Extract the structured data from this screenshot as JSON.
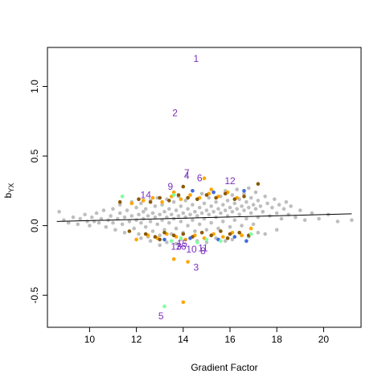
{
  "chart_data": {
    "type": "scatter",
    "title": "",
    "xlabel": "Gradient Factor",
    "ylabel_main": "b",
    "ylabel_sub": "YX",
    "xlim": [
      8.2,
      21.6
    ],
    "ylim": [
      -0.73,
      1.28
    ],
    "xticks": [
      10,
      12,
      14,
      16,
      18,
      20
    ],
    "xtick_labels": [
      "10",
      "12",
      "14",
      "16",
      "18",
      "20"
    ],
    "yticks": [
      -0.5,
      0.0,
      0.5,
      1.0
    ],
    "ytick_labels": [
      "-0.5",
      "0.0",
      "0.5",
      "1.0"
    ],
    "grid": false,
    "legend": "none",
    "colors": {
      "background_points": "#bebebe",
      "orange": "#ffa500",
      "brown": "#8b5a00",
      "blue": "#4169e1",
      "green": "#7fff9f",
      "label": "#7b2fbe",
      "line": "#000000"
    },
    "trend_line": {
      "x": [
        8.6,
        21.2
      ],
      "y": [
        0.03,
        0.085
      ]
    },
    "annotations": [
      {
        "label": "1",
        "x": 14.55,
        "y": 1.2
      },
      {
        "label": "2",
        "x": 13.65,
        "y": 0.81
      },
      {
        "label": "3",
        "x": 14.55,
        "y": -0.3
      },
      {
        "label": "4",
        "x": 14.15,
        "y": 0.36
      },
      {
        "label": "5",
        "x": 13.05,
        "y": -0.65
      },
      {
        "label": "6",
        "x": 14.7,
        "y": 0.34
      },
      {
        "label": "7",
        "x": 14.15,
        "y": 0.38
      },
      {
        "label": "8",
        "x": 14.85,
        "y": -0.18
      },
      {
        "label": "9",
        "x": 13.45,
        "y": 0.28
      },
      {
        "label": "10",
        "x": 14.35,
        "y": -0.17
      },
      {
        "label": "11",
        "x": 14.85,
        "y": -0.16
      },
      {
        "label": "12",
        "x": 16.0,
        "y": 0.32
      },
      {
        "label": "13",
        "x": 13.7,
        "y": -0.15
      },
      {
        "label": "14",
        "x": 12.4,
        "y": 0.22
      },
      {
        "label": "15",
        "x": 13.95,
        "y": -0.13
      },
      {
        "label": "16",
        "x": 13.9,
        "y": -0.15
      }
    ],
    "series": [
      {
        "color": "gray",
        "points": [
          [
            8.7,
            0.1
          ],
          [
            8.9,
            0.04
          ],
          [
            9.1,
            0.02
          ],
          [
            9.3,
            0.06
          ],
          [
            9.5,
            0.01
          ],
          [
            9.6,
            0.05
          ],
          [
            9.8,
            0.08
          ],
          [
            9.9,
            0.03
          ],
          [
            10.0,
            0.0
          ],
          [
            10.1,
            0.06
          ],
          [
            10.2,
            0.03
          ],
          [
            10.3,
            0.09
          ],
          [
            10.4,
            0.02
          ],
          [
            10.5,
            0.05
          ],
          [
            10.6,
            0.11
          ],
          [
            10.7,
            -0.01
          ],
          [
            10.8,
            0.04
          ],
          [
            10.9,
            0.07
          ],
          [
            11.0,
            0.02
          ],
          [
            11.0,
            0.12
          ],
          [
            11.1,
            -0.03
          ],
          [
            11.2,
            0.05
          ],
          [
            11.3,
            0.09
          ],
          [
            11.3,
            0.15
          ],
          [
            11.4,
            0.01
          ],
          [
            11.5,
            0.06
          ],
          [
            11.5,
            -0.05
          ],
          [
            11.6,
            0.11
          ],
          [
            11.7,
            0.03
          ],
          [
            11.8,
            0.07
          ],
          [
            11.8,
            0.17
          ],
          [
            11.9,
            -0.02
          ],
          [
            12.0,
            0.04
          ],
          [
            12.0,
            0.13
          ],
          [
            12.1,
            0.08
          ],
          [
            12.1,
            -0.06
          ],
          [
            12.2,
            0.02
          ],
          [
            12.2,
            0.16
          ],
          [
            12.3,
            0.05
          ],
          [
            12.3,
            0.1
          ],
          [
            12.4,
            -0.01
          ],
          [
            12.4,
            0.12
          ],
          [
            12.5,
            0.07
          ],
          [
            12.5,
            -0.08
          ],
          [
            12.6,
            0.03
          ],
          [
            12.6,
            0.18
          ],
          [
            12.7,
            0.09
          ],
          [
            12.7,
            -0.04
          ],
          [
            12.8,
            0.06
          ],
          [
            12.8,
            0.14
          ],
          [
            12.9,
            0.01
          ],
          [
            12.9,
            0.2
          ],
          [
            13.0,
            0.08
          ],
          [
            13.0,
            -0.07
          ],
          [
            13.1,
            0.04
          ],
          [
            13.1,
            0.15
          ],
          [
            13.2,
            0.1
          ],
          [
            13.2,
            -0.03
          ],
          [
            13.3,
            0.06
          ],
          [
            13.3,
            0.19
          ],
          [
            13.4,
            0.02
          ],
          [
            13.4,
            0.12
          ],
          [
            13.5,
            0.08
          ],
          [
            13.5,
            -0.06
          ],
          [
            13.6,
            0.05
          ],
          [
            13.6,
            0.17
          ],
          [
            13.7,
            0.11
          ],
          [
            13.7,
            -0.02
          ],
          [
            13.8,
            0.07
          ],
          [
            13.8,
            0.21
          ],
          [
            13.9,
            0.03
          ],
          [
            13.9,
            0.14
          ],
          [
            14.0,
            0.09
          ],
          [
            14.0,
            -0.05
          ],
          [
            14.1,
            0.06
          ],
          [
            14.1,
            0.18
          ],
          [
            14.2,
            0.12
          ],
          [
            14.2,
            0.0
          ],
          [
            14.3,
            0.08
          ],
          [
            14.3,
            0.22
          ],
          [
            14.4,
            0.04
          ],
          [
            14.4,
            0.15
          ],
          [
            14.5,
            0.1
          ],
          [
            14.5,
            -0.04
          ],
          [
            14.6,
            0.07
          ],
          [
            14.6,
            0.19
          ],
          [
            14.7,
            0.13
          ],
          [
            14.7,
            0.01
          ],
          [
            14.8,
            0.09
          ],
          [
            14.8,
            0.23
          ],
          [
            14.9,
            0.05
          ],
          [
            14.9,
            0.16
          ],
          [
            15.0,
            0.11
          ],
          [
            15.0,
            -0.03
          ],
          [
            15.1,
            0.08
          ],
          [
            15.1,
            0.2
          ],
          [
            15.2,
            0.14
          ],
          [
            15.2,
            0.02
          ],
          [
            15.3,
            0.1
          ],
          [
            15.3,
            0.24
          ],
          [
            15.4,
            0.06
          ],
          [
            15.4,
            0.17
          ],
          [
            15.5,
            0.12
          ],
          [
            15.5,
            -0.02
          ],
          [
            15.6,
            0.09
          ],
          [
            15.6,
            0.21
          ],
          [
            15.7,
            0.15
          ],
          [
            15.7,
            0.03
          ],
          [
            15.8,
            0.11
          ],
          [
            15.8,
            0.25
          ],
          [
            15.9,
            0.07
          ],
          [
            15.9,
            0.18
          ],
          [
            16.0,
            0.13
          ],
          [
            16.0,
            -0.01
          ],
          [
            16.1,
            0.1
          ],
          [
            16.1,
            0.22
          ],
          [
            16.2,
            0.16
          ],
          [
            16.2,
            0.04
          ],
          [
            16.3,
            0.12
          ],
          [
            16.3,
            0.26
          ],
          [
            16.4,
            0.08
          ],
          [
            16.4,
            0.19
          ],
          [
            16.5,
            0.14
          ],
          [
            16.5,
            0.0
          ],
          [
            16.6,
            0.11
          ],
          [
            16.6,
            0.23
          ],
          [
            16.7,
            0.17
          ],
          [
            16.7,
            0.05
          ],
          [
            16.8,
            0.13
          ],
          [
            16.8,
            0.27
          ],
          [
            16.9,
            0.09
          ],
          [
            16.9,
            0.2
          ],
          [
            17.0,
            0.15
          ],
          [
            17.0,
            0.01
          ],
          [
            17.1,
            0.12
          ],
          [
            17.1,
            0.24
          ],
          [
            17.2,
            0.18
          ],
          [
            17.2,
            0.06
          ],
          [
            17.3,
            0.14
          ],
          [
            17.4,
            0.1
          ],
          [
            17.5,
            0.21
          ],
          [
            17.6,
            0.16
          ],
          [
            17.7,
            0.07
          ],
          [
            17.8,
            0.13
          ],
          [
            17.9,
            0.19
          ],
          [
            18.0,
            0.09
          ],
          [
            18.1,
            0.15
          ],
          [
            18.2,
            0.05
          ],
          [
            18.3,
            0.12
          ],
          [
            18.4,
            0.17
          ],
          [
            18.5,
            0.08
          ],
          [
            18.6,
            0.14
          ],
          [
            18.8,
            0.06
          ],
          [
            19.0,
            0.11
          ],
          [
            19.2,
            0.04
          ],
          [
            19.5,
            0.09
          ],
          [
            19.8,
            0.05
          ],
          [
            20.2,
            0.08
          ],
          [
            20.6,
            0.03
          ],
          [
            21.2,
            0.04
          ],
          [
            12.6,
            -0.11
          ],
          [
            13.3,
            -0.12
          ],
          [
            13.9,
            -0.1
          ],
          [
            14.6,
            -0.11
          ],
          [
            15.4,
            -0.09
          ],
          [
            16.1,
            -0.1
          ],
          [
            16.8,
            -0.08
          ],
          [
            17.5,
            -0.06
          ],
          [
            12.2,
            -0.09
          ],
          [
            13.0,
            -0.14
          ],
          [
            13.7,
            -0.13
          ],
          [
            15.0,
            -0.12
          ],
          [
            15.8,
            -0.11
          ],
          [
            16.5,
            -0.07
          ],
          [
            17.2,
            -0.05
          ],
          [
            18.0,
            -0.03
          ]
        ]
      },
      {
        "color": "orange",
        "points": [
          [
            11.8,
            0.16
          ],
          [
            12.3,
            0.18
          ],
          [
            12.7,
            0.2
          ],
          [
            13.1,
            0.17
          ],
          [
            13.5,
            0.21
          ],
          [
            13.9,
            0.19
          ],
          [
            14.3,
            0.22
          ],
          [
            14.7,
            0.2
          ],
          [
            15.1,
            0.23
          ],
          [
            15.5,
            0.21
          ],
          [
            15.9,
            0.24
          ],
          [
            16.3,
            0.2
          ],
          [
            14.9,
            0.34
          ],
          [
            15.2,
            0.26
          ],
          [
            13.6,
            0.24
          ],
          [
            12.5,
            -0.07
          ],
          [
            12.9,
            -0.09
          ],
          [
            13.3,
            -0.06
          ],
          [
            13.7,
            -0.08
          ],
          [
            14.1,
            -0.1
          ],
          [
            14.5,
            -0.07
          ],
          [
            14.9,
            -0.09
          ],
          [
            15.3,
            -0.06
          ],
          [
            15.7,
            -0.08
          ],
          [
            16.1,
            -0.05
          ],
          [
            16.5,
            -0.07
          ],
          [
            12.0,
            -0.1
          ],
          [
            13.6,
            -0.24
          ],
          [
            14.2,
            -0.26
          ],
          [
            14.0,
            -0.55
          ],
          [
            16.9,
            -0.02
          ]
        ]
      },
      {
        "color": "brown",
        "points": [
          [
            11.3,
            0.17
          ],
          [
            12.1,
            0.19
          ],
          [
            12.6,
            0.17
          ],
          [
            13.0,
            0.2
          ],
          [
            13.4,
            0.18
          ],
          [
            13.8,
            0.22
          ],
          [
            14.0,
            0.28
          ],
          [
            14.2,
            0.2
          ],
          [
            14.6,
            0.19
          ],
          [
            15.0,
            0.22
          ],
          [
            15.4,
            0.2
          ],
          [
            15.8,
            0.23
          ],
          [
            16.2,
            0.19
          ],
          [
            16.6,
            0.21
          ],
          [
            17.2,
            0.3
          ],
          [
            11.7,
            -0.04
          ],
          [
            12.4,
            -0.06
          ],
          [
            12.8,
            -0.08
          ],
          [
            13.2,
            -0.05
          ],
          [
            13.6,
            -0.07
          ],
          [
            14.0,
            -0.06
          ],
          [
            14.4,
            -0.08
          ],
          [
            14.8,
            -0.05
          ],
          [
            15.2,
            -0.07
          ],
          [
            15.6,
            -0.04
          ],
          [
            16.0,
            -0.06
          ],
          [
            16.4,
            -0.05
          ],
          [
            16.8,
            -0.07
          ],
          [
            13.0,
            -0.1
          ],
          [
            15.9,
            -0.09
          ]
        ]
      },
      {
        "color": "blue",
        "points": [
          [
            14.4,
            0.25
          ],
          [
            15.3,
            0.24
          ],
          [
            16.6,
            0.25
          ],
          [
            13.2,
            -0.1
          ],
          [
            14.3,
            -0.09
          ],
          [
            15.5,
            -0.1
          ],
          [
            16.2,
            -0.08
          ],
          [
            16.7,
            -0.11
          ]
        ]
      },
      {
        "color": "green",
        "points": [
          [
            11.4,
            0.21
          ],
          [
            13.6,
            0.22
          ],
          [
            13.5,
            -0.11
          ],
          [
            13.9,
            -0.09
          ],
          [
            14.6,
            -0.12
          ],
          [
            15.0,
            -0.1
          ],
          [
            15.6,
            -0.11
          ],
          [
            16.9,
            -0.06
          ],
          [
            13.2,
            -0.58
          ]
        ]
      }
    ]
  }
}
